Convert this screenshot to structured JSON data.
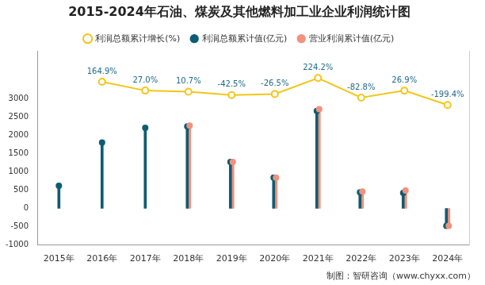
{
  "chart_data": {
    "type": "bar",
    "title": "2015-2024年石油、煤炭及其他燃料加工业企业利润统计图",
    "source": "制图：智研咨询（www.chyxx.com）",
    "categories": [
      "2015年",
      "2016年",
      "2017年",
      "2018年",
      "2019年",
      "2020年",
      "2021年",
      "2022年",
      "2023年",
      "2024年"
    ],
    "series": [
      {
        "name": "利润总额累计值(亿元)",
        "color": "#0e5c72",
        "marker": "circle",
        "values": [
          620,
          1800,
          2200,
          2240,
          1270,
          840,
          2660,
          440,
          420,
          -480
        ]
      },
      {
        "name": "营业利润累计值(亿元)",
        "color": "#f2917c",
        "marker": "circle",
        "values": [
          null,
          null,
          null,
          2260,
          1270,
          840,
          2710,
          460,
          490,
          -480
        ]
      },
      {
        "name": "利润总额累计增长(%)",
        "type": "line",
        "axis": "y2",
        "color": "#f5c518",
        "marker": "circle",
        "data_labels": true,
        "values": [
          null,
          164.9,
          27.0,
          10.7,
          -42.5,
          -26.5,
          224.2,
          -82.8,
          26.9,
          -199.4
        ],
        "value_labels": [
          null,
          "164.9%",
          "27.0%",
          "10.7%",
          "-42.5%",
          "-26.5%",
          "224.2%",
          "-82.8%",
          "26.9%",
          "-199.4%"
        ]
      }
    ],
    "ylim": [
      -1000,
      4300
    ],
    "yticks": [
      -1000,
      -500,
      0,
      500,
      1000,
      1500,
      2000,
      2500,
      3000
    ],
    "y2lim": [
      -2400,
      650
    ],
    "grid": false,
    "legend": "top"
  }
}
